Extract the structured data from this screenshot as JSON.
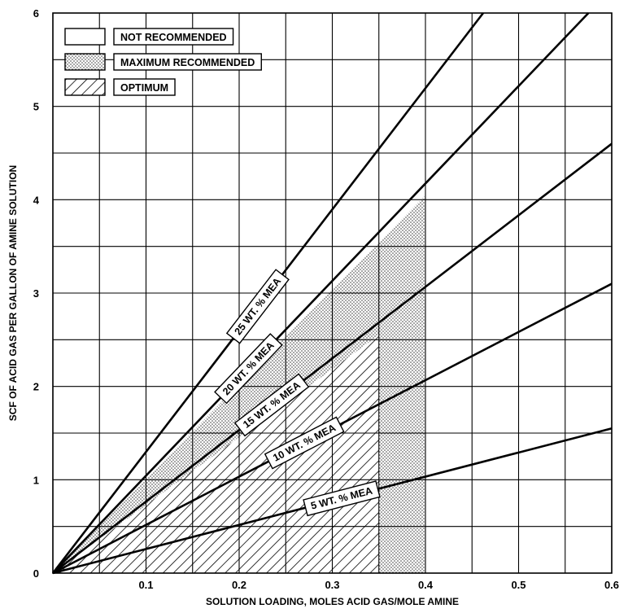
{
  "chart_data": {
    "type": "line",
    "title": "",
    "xlabel": "SOLUTION LOADING, MOLES ACID GAS/MOLE AMINE",
    "ylabel": "SCF OF ACID GAS PER GALLON OF AMINE SOLUTION",
    "xlim": [
      0,
      0.6
    ],
    "ylim": [
      0,
      6
    ],
    "x_ticks": [
      "0.1",
      "0.2",
      "0.3",
      "0.4",
      "0.5",
      "0.6"
    ],
    "y_ticks": [
      "0",
      "1",
      "2",
      "3",
      "4",
      "5",
      "6"
    ],
    "grid": true,
    "grid_step_x": 0.05,
    "grid_step_y": 0.5,
    "legend_position": "top-left",
    "legend": [
      {
        "key": "not",
        "label": "NOT RECOMMENDED",
        "pattern": "none"
      },
      {
        "key": "max",
        "label": "MAXIMUM RECOMMENDED",
        "pattern": "dots"
      },
      {
        "key": "opt",
        "label": "OPTIMUM",
        "pattern": "hatch"
      }
    ],
    "series": [
      {
        "name": "5 WT. % MEA",
        "x": [
          0,
          0.6
        ],
        "y": [
          0,
          1.55
        ],
        "label_at_x": 0.31
      },
      {
        "name": "10 WT. % MEA",
        "x": [
          0,
          0.6
        ],
        "y": [
          0,
          3.1
        ],
        "label_at_x": 0.27
      },
      {
        "name": "15 WT. % MEA",
        "x": [
          0,
          0.6
        ],
        "y": [
          0,
          4.6
        ],
        "label_at_x": 0.235
      },
      {
        "name": "20 WT. % MEA",
        "x": [
          0,
          0.575
        ],
        "y": [
          0,
          6.0
        ],
        "label_at_x": 0.21
      },
      {
        "name": "25 WT. % MEA",
        "x": [
          0,
          0.462
        ],
        "y": [
          0,
          6.0
        ],
        "label_at_x": 0.22
      }
    ],
    "regions": [
      {
        "pattern": "dots",
        "polygon": [
          [
            0,
            0
          ],
          [
            0.4,
            0
          ],
          [
            0.4,
            4.05
          ]
        ]
      },
      {
        "pattern": "hatch",
        "polygon": [
          [
            0,
            0
          ],
          [
            0.35,
            0
          ],
          [
            0.35,
            2.55
          ]
        ]
      }
    ]
  }
}
